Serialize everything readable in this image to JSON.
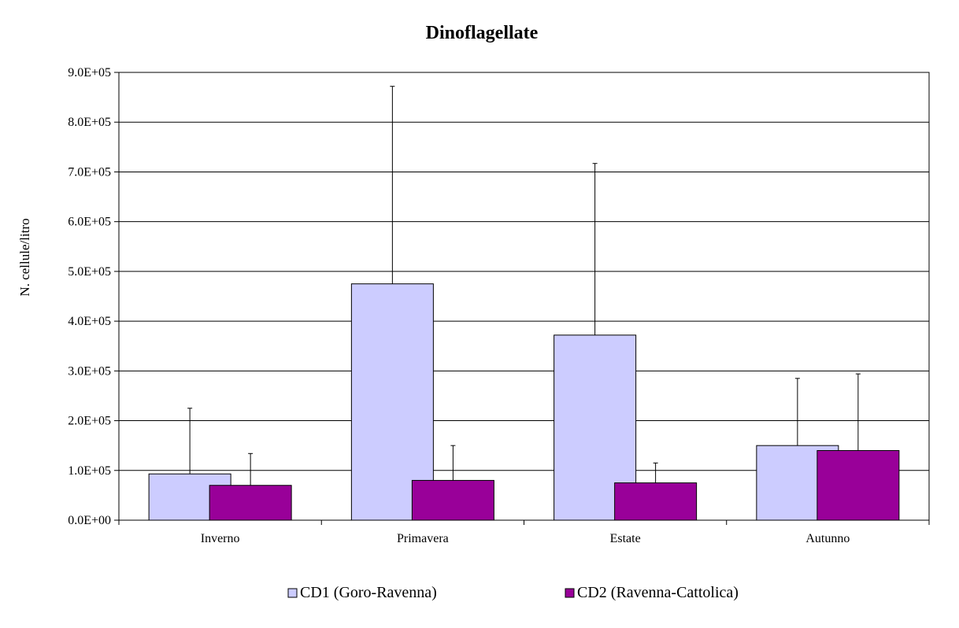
{
  "chart_data": {
    "type": "bar",
    "title": "Dinoflagellate",
    "xlabel": "",
    "ylabel": "N. cellule/litro",
    "categories": [
      "Inverno",
      "Primavera",
      "Estate",
      "Autunno"
    ],
    "ylim": [
      0,
      900000
    ],
    "ytick_values": [
      0,
      100000,
      200000,
      300000,
      400000,
      500000,
      600000,
      700000,
      800000,
      900000
    ],
    "ytick_labels": [
      "0.0E+00",
      "1.0E+05",
      "2.0E+05",
      "3.0E+05",
      "4.0E+05",
      "5.0E+05",
      "6.0E+05",
      "7.0E+05",
      "8.0E+05",
      "9.0E+05"
    ],
    "grid": "horizontal major gridlines",
    "legend_position": "bottom",
    "series": [
      {
        "name": "CD1 (Goro-Ravenna)",
        "color": "#ccccff",
        "values": [
          93000,
          475000,
          372000,
          150000
        ],
        "error_upper": [
          225000,
          872000,
          717000,
          285000
        ]
      },
      {
        "name": "CD2 (Ravenna-Cattolica)",
        "color": "#990099",
        "values": [
          70000,
          80000,
          75000,
          140000
        ],
        "error_upper": [
          134000,
          150000,
          115000,
          294000
        ]
      }
    ]
  }
}
